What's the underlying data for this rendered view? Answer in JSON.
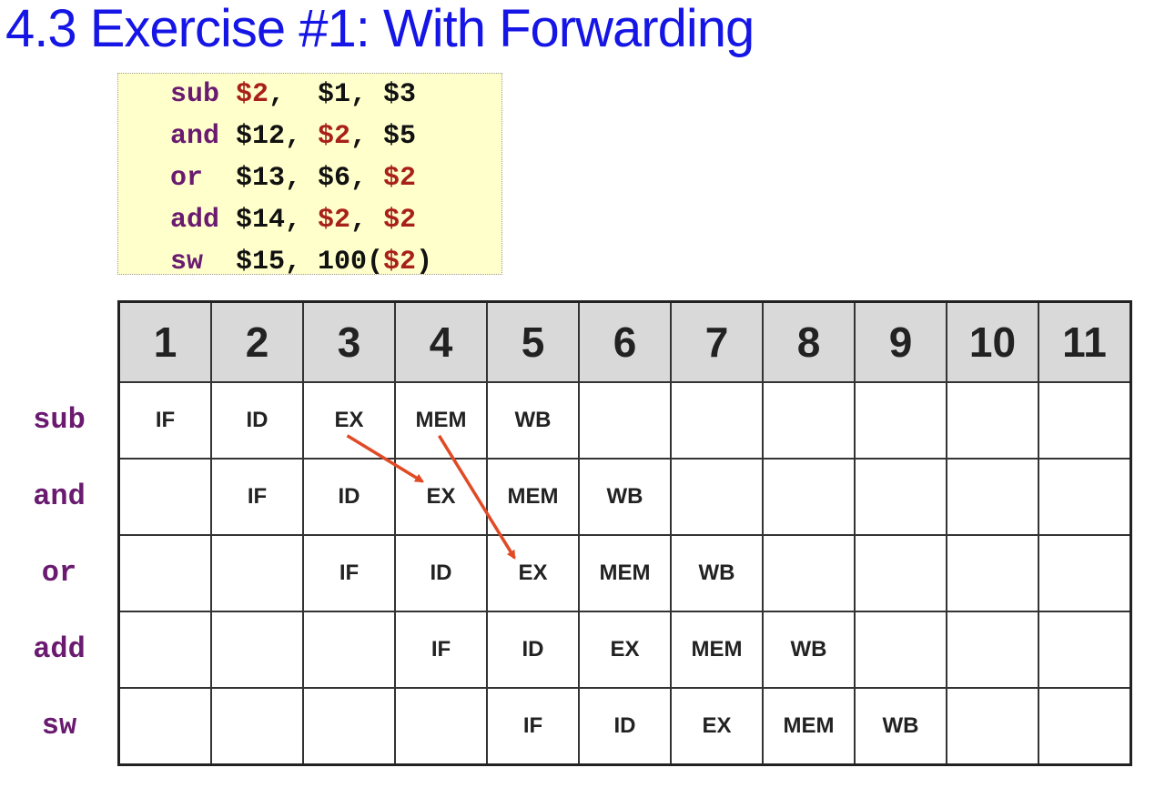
{
  "title": "4.3 Exercise #1: With Forwarding",
  "code": [
    {
      "op": "sub",
      "parts": [
        {
          "t": "$2",
          "hl": true
        },
        {
          "t": ",  ",
          "hl": false
        },
        {
          "t": "$1, $3",
          "hl": false
        }
      ]
    },
    {
      "op": "and",
      "parts": [
        {
          "t": "$12, ",
          "hl": false
        },
        {
          "t": "$2",
          "hl": true
        },
        {
          "t": ", $5",
          "hl": false
        }
      ]
    },
    {
      "op": "or ",
      "parts": [
        {
          "t": "$13, $6, ",
          "hl": false
        },
        {
          "t": "$2",
          "hl": true
        }
      ]
    },
    {
      "op": "add",
      "parts": [
        {
          "t": "$14, ",
          "hl": false
        },
        {
          "t": "$2",
          "hl": true
        },
        {
          "t": ", ",
          "hl": false
        },
        {
          "t": "$2",
          "hl": true
        }
      ]
    },
    {
      "op": "sw ",
      "parts": [
        {
          "t": "$15, 100(",
          "hl": false
        },
        {
          "t": "$2",
          "hl": true
        },
        {
          "t": ")",
          "hl": false
        }
      ]
    }
  ],
  "cycles": [
    "1",
    "2",
    "3",
    "4",
    "5",
    "6",
    "7",
    "8",
    "9",
    "10",
    "11"
  ],
  "rows": [
    {
      "label": "sub",
      "stages": [
        "IF",
        "ID",
        "EX",
        "MEM",
        "WB",
        "",
        "",
        "",
        "",
        "",
        ""
      ]
    },
    {
      "label": "and",
      "stages": [
        "",
        "IF",
        "ID",
        "EX",
        "MEM",
        "WB",
        "",
        "",
        "",
        "",
        ""
      ]
    },
    {
      "label": "or",
      "stages": [
        "",
        "",
        "IF",
        "ID",
        "EX",
        "MEM",
        "WB",
        "",
        "",
        "",
        ""
      ]
    },
    {
      "label": "add",
      "stages": [
        "",
        "",
        "",
        "IF",
        "ID",
        "EX",
        "MEM",
        "WB",
        "",
        "",
        ""
      ]
    },
    {
      "label": "sw",
      "stages": [
        "",
        "",
        "",
        "",
        "IF",
        "ID",
        "EX",
        "MEM",
        "WB",
        "",
        ""
      ]
    }
  ],
  "colors": {
    "title": "#1515e6",
    "opcode": "#6a1b70",
    "register_hl": "#a8201a",
    "arrow": "#e04a25",
    "header_bg": "#d9d9d9",
    "code_bg": "#ffffcc"
  },
  "forwarding_arrows": [
    {
      "from_row": 0,
      "from_col": 2,
      "to_row": 1,
      "to_col": 3
    },
    {
      "from_row": 0,
      "from_col": 3,
      "to_row": 2,
      "to_col": 4
    }
  ]
}
